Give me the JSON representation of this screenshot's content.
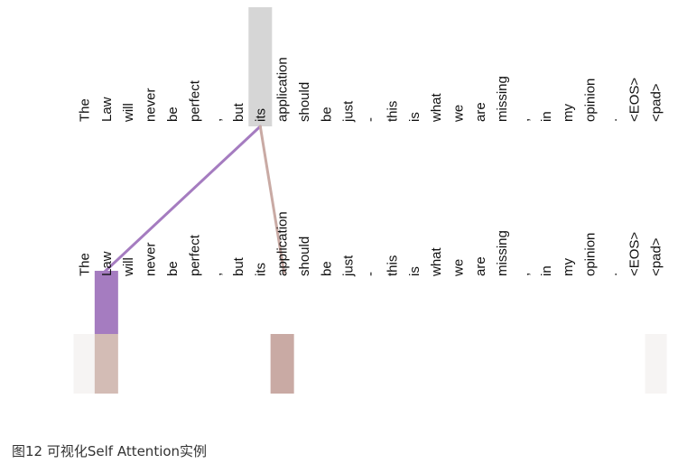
{
  "tokens": [
    "The",
    "Law",
    "will",
    "never",
    "be",
    "perfect",
    ",",
    "but",
    "its",
    "application",
    "should",
    "be",
    "just",
    "-",
    "this",
    "is",
    "what",
    "we",
    "are",
    "missing",
    ",",
    "in",
    "my",
    "opinion",
    ".",
    "<EOS>",
    "<pad>"
  ],
  "focus_token": "its",
  "attention": [
    {
      "target": "Law",
      "color": "#a57cc0",
      "weight": 0.85
    },
    {
      "target": "application",
      "color": "#c9aaa4",
      "weight": 0.7
    }
  ],
  "caption": "图12 可视化Self Attention实例"
}
